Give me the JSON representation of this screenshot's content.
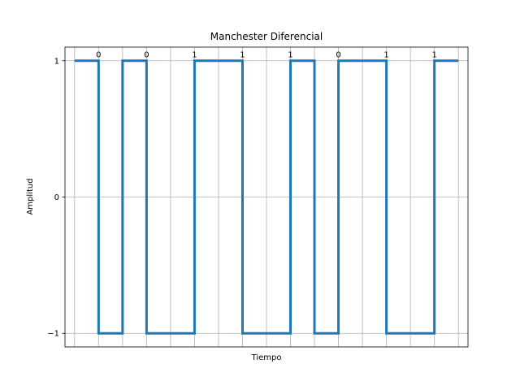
{
  "chart_data": {
    "type": "line",
    "title": "Manchester Diferencial",
    "xlabel": "Tiempo",
    "ylabel": "Amplitud",
    "ylim": [
      -1.1,
      1.1
    ],
    "xlim": [
      -0.2,
      8.2
    ],
    "yticks": [
      -1,
      0,
      1
    ],
    "ytick_labels": [
      "−1",
      "0",
      "1"
    ],
    "xgrid": [
      0,
      0.5,
      1,
      1.5,
      2,
      2.5,
      3,
      3.5,
      4,
      4.5,
      5,
      5.5,
      6,
      6.5,
      7,
      7.5,
      8
    ],
    "grid": true,
    "line_color": "#1f77b4",
    "bits": [
      "0",
      "0",
      "1",
      "1",
      "1",
      "0",
      "1",
      "1"
    ],
    "bit_label_x": [
      0.5,
      1.5,
      2.5,
      3.5,
      4.5,
      5.5,
      6.5,
      7.5
    ],
    "signal": {
      "name": "",
      "drawstyle": "steps-post",
      "x": [
        0,
        0.5,
        1,
        1.5,
        2,
        2.5,
        3,
        3.5,
        4,
        4.5,
        5,
        5.5,
        6,
        6.5,
        7,
        7.5,
        8
      ],
      "y": [
        1,
        -1,
        1,
        -1,
        -1,
        1,
        1,
        -1,
        -1,
        1,
        -1,
        1,
        1,
        -1,
        -1,
        1,
        1
      ]
    }
  }
}
